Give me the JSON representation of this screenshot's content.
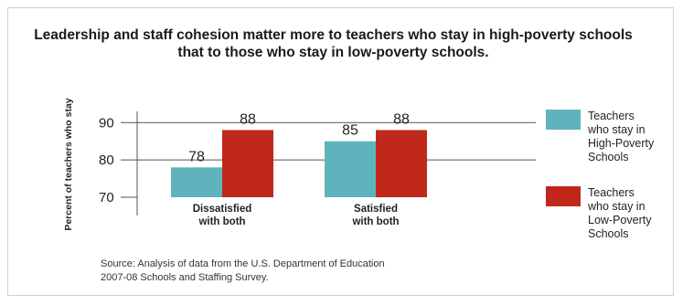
{
  "title_lines": [
    "Leadership and staff cohesion matter more to teachers who stay in high-poverty schools",
    "that to those who stay in low-poverty schools."
  ],
  "source_lines": [
    "Source: Analysis of data from the U.S. Department of Education",
    "2007-08 Schools and Staffing Survey."
  ],
  "chart_data": {
    "type": "bar",
    "title": "Leadership and staff cohesion matter more to teachers who stay in high-poverty schools that to those who stay in low-poverty schools.",
    "ylabel": "Percent of teachers who stay",
    "xlabel": "",
    "categories": [
      [
        "Dissatisfied",
        "with both"
      ],
      [
        "Satisfied",
        "with both"
      ]
    ],
    "series": [
      {
        "name": [
          "Teachers",
          "who stay in",
          "High-Poverty",
          "Schools"
        ],
        "values": [
          78,
          85
        ],
        "color": "#5fb3bc"
      },
      {
        "name": [
          "Teachers",
          "who stay in",
          "Low-Poverty",
          "Schools"
        ],
        "values": [
          88,
          88
        ],
        "color": "#c0281b"
      }
    ],
    "yticks": [
      70,
      80,
      90
    ],
    "ylim": [
      70,
      93
    ],
    "grid": true,
    "legend": "right",
    "data_labels": true
  }
}
